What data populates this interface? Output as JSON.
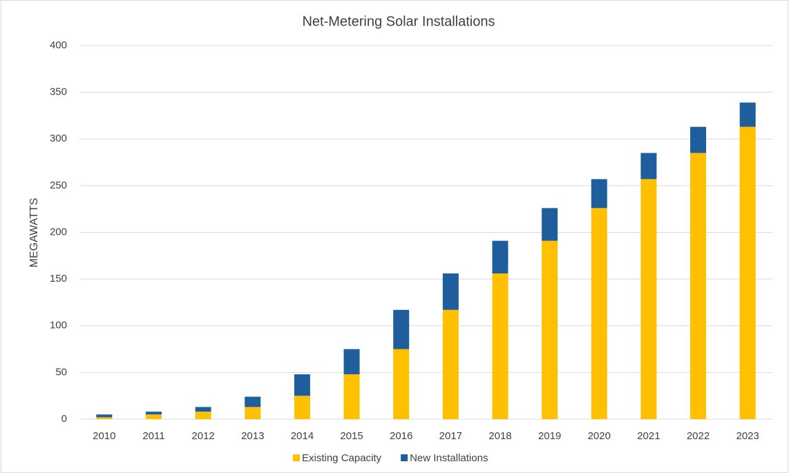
{
  "chart_data": {
    "type": "stacked_bar",
    "title": "Net-Metering Solar Installations",
    "y_label": "MEGAWATTS",
    "categories": [
      "2010",
      "2011",
      "2012",
      "2013",
      "2014",
      "2015",
      "2016",
      "2017",
      "2018",
      "2019",
      "2020",
      "2021",
      "2022",
      "2023"
    ],
    "series": [
      {
        "name": "Existing Capacity",
        "color": "#FFC000",
        "values": [
          2,
          5,
          8,
          13,
          25,
          48,
          75,
          117,
          156,
          191,
          226,
          257,
          285,
          313
        ]
      },
      {
        "name": "New Installations",
        "color": "#1F5E9C",
        "values": [
          3,
          3,
          5,
          11,
          23,
          27,
          42,
          39,
          35,
          35,
          31,
          28,
          28,
          26
        ]
      }
    ],
    "ylim": [
      0,
      400
    ],
    "yticks": [
      0,
      50,
      100,
      150,
      200,
      250,
      300,
      350,
      400
    ],
    "grid": true,
    "legend": "bottom"
  }
}
